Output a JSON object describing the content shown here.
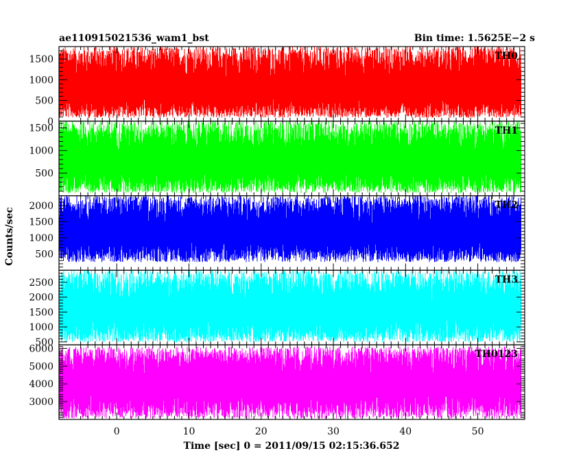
{
  "chart_data": {
    "type": "line",
    "title_left": "ae110915021536_wam1_bst",
    "title_right": "Bin time: 1.5625E−2 s",
    "xlabel": "Time [sec] 0 = 2011/09/15 02:15:36.652",
    "ylabel": "Counts/sec",
    "xlim": [
      -8,
      56.5
    ],
    "x_ticks": [
      0,
      10,
      20,
      30,
      40,
      50
    ],
    "x_range": [
      -8,
      56
    ],
    "bin_time": 0.015625,
    "series": [
      {
        "name": "TH0",
        "color": "#ff0000",
        "ylim": [
          0,
          1800
        ],
        "y_ticks": [
          0,
          500,
          1000,
          1500
        ],
        "y_ticklabels": [
          "0",
          "500",
          "1000",
          "1500"
        ],
        "mean": 720,
        "low": 80,
        "high": 1800
      },
      {
        "name": "TH1",
        "color": "#00ff00",
        "ylim": [
          0,
          1650
        ],
        "y_ticks": [
          500,
          1000,
          1500
        ],
        "y_ticklabels": [
          "500",
          "1000",
          "1500"
        ],
        "mean": 700,
        "low": 60,
        "high": 1650
      },
      {
        "name": "TH2",
        "color": "#0000ff",
        "ylim": [
          0,
          2300
        ],
        "y_ticks": [
          500,
          1000,
          1500,
          2000
        ],
        "y_ticklabels": [
          "500",
          "1000",
          "1500",
          "2000"
        ],
        "mean": 1150,
        "low": 250,
        "high": 2300
      },
      {
        "name": "TH3",
        "color": "#00ffff",
        "ylim": [
          400,
          2900
        ],
        "y_ticks": [
          500,
          1000,
          1500,
          2000,
          2500
        ],
        "y_ticklabels": [
          "500",
          "1000",
          "1500",
          "2000",
          "2500"
        ],
        "mean": 1500,
        "low": 480,
        "high": 2900
      },
      {
        "name": "TH0123",
        "color": "#ff00ff",
        "ylim": [
          2000,
          6200
        ],
        "y_ticks": [
          3000,
          4000,
          5000,
          6000
        ],
        "y_ticklabels": [
          "3000",
          "4000",
          "5000",
          "6000"
        ],
        "mean": 3900,
        "low": 2050,
        "high": 6100
      }
    ]
  }
}
